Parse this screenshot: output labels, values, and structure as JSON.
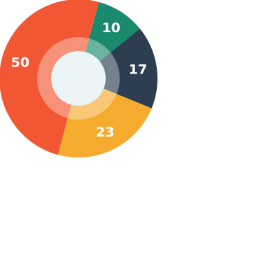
{
  "chart_data": {
    "type": "pie",
    "variant": "donut",
    "slices": [
      {
        "label": "10",
        "value": 10,
        "color": "#1a8a6e"
      },
      {
        "label": "17",
        "value": 17,
        "color": "#2c3e50"
      },
      {
        "label": "23",
        "value": 23,
        "color": "#f5ab2e"
      },
      {
        "label": "50",
        "value": 50,
        "color": "#f15733"
      }
    ],
    "center_color": "#ecf4f5",
    "inner_ring_color": "#ffffff",
    "inner_ring_opacity": 0.35
  }
}
